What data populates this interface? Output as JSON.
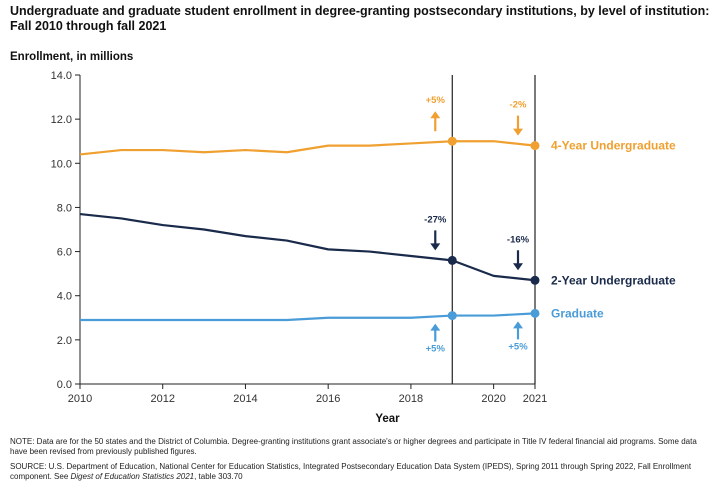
{
  "header": {
    "title": "Undergraduate and graduate student enrollment in degree-granting postsecondary institutions, by level of institution: Fall 2010 through fall 2021",
    "ylabel": "Enrollment, in millions"
  },
  "footer": {
    "note": "NOTE: Data are for the 50 states and the District of Columbia. Degree-granting institutions grant associate's or higher degrees and participate in Title IV federal financial aid programs. Some data have been revised from previously published figures.",
    "source_prefix": "SOURCE: U.S. Department of Education, National Center for Education Statistics, Integrated Postsecondary Education Data System (IPEDS), Spring 2011 through Spring 2022, Fall Enrollment component. See ",
    "source_italic": "Digest of Education Statistics 2021",
    "source_suffix": ", table 303.70"
  },
  "colors": {
    "four_year": "#F0A030",
    "two_year": "#1A2A4A",
    "graduate": "#4A9CD8",
    "axis": "#222222"
  },
  "chart_data": {
    "type": "line",
    "xlabel": "Year",
    "ylabel": "Enrollment, in millions",
    "xlim": [
      2010,
      2021
    ],
    "ylim": [
      0,
      14
    ],
    "x_ticks": [
      "2010",
      "2012",
      "2014",
      "2016",
      "2018",
      "2020",
      "2021"
    ],
    "y_ticks": [
      "0.0",
      "2.0",
      "4.0",
      "6.0",
      "8.0",
      "10.0",
      "12.0",
      "14.0"
    ],
    "reference_lines": [
      2019,
      2021
    ],
    "grid": false,
    "x": [
      2010,
      2011,
      2012,
      2013,
      2014,
      2015,
      2016,
      2017,
      2018,
      2019,
      2020,
      2021
    ],
    "series": [
      {
        "name": "4-Year Undergraduate",
        "color_key": "four_year",
        "values": [
          10.4,
          10.6,
          10.6,
          10.5,
          10.6,
          10.5,
          10.8,
          10.8,
          10.9,
          11.0,
          11.0,
          10.8
        ]
      },
      {
        "name": "2-Year Undergraduate",
        "color_key": "two_year",
        "values": [
          7.7,
          7.5,
          7.2,
          7.0,
          6.7,
          6.5,
          6.1,
          6.0,
          5.8,
          5.6,
          4.9,
          4.7
        ]
      },
      {
        "name": "Graduate",
        "color_key": "graduate",
        "values": [
          2.9,
          2.9,
          2.9,
          2.9,
          2.9,
          2.9,
          3.0,
          3.0,
          3.0,
          3.1,
          3.1,
          3.2
        ]
      }
    ],
    "annotations": [
      {
        "series": "4-Year Undergraduate",
        "x": 2019,
        "text": "+5%",
        "direction": "up",
        "side": "above"
      },
      {
        "series": "4-Year Undergraduate",
        "x": 2021,
        "text": "-2%",
        "direction": "down",
        "side": "above"
      },
      {
        "series": "2-Year Undergraduate",
        "x": 2019,
        "text": "-27%",
        "direction": "down",
        "side": "above"
      },
      {
        "series": "2-Year Undergraduate",
        "x": 2021,
        "text": "-16%",
        "direction": "down",
        "side": "above"
      },
      {
        "series": "Graduate",
        "x": 2019,
        "text": "+5%",
        "direction": "up",
        "side": "below"
      },
      {
        "series": "Graduate",
        "x": 2021,
        "text": "+5%",
        "direction": "up",
        "side": "below"
      }
    ]
  }
}
